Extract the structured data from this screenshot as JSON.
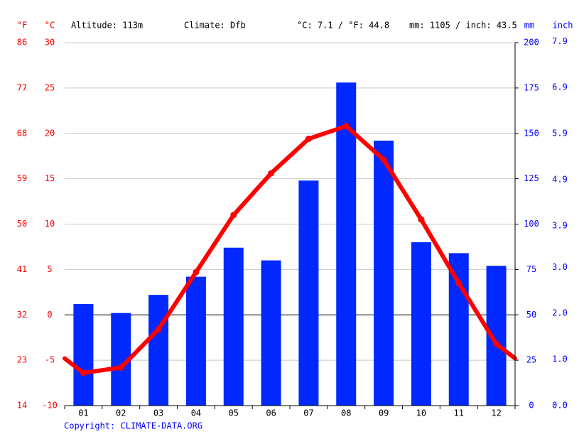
{
  "chart_data": {
    "type": "climate",
    "header": {
      "f_unit": "°F",
      "c_unit": "°C",
      "altitude": "Altitude: 113m",
      "climate": "Climate: Dfb",
      "temp_avg": "°C: 7.1 / °F: 44.8",
      "precip_total": "mm: 1105 / inch: 43.5",
      "mm_unit": "mm",
      "inch_unit": "inch"
    },
    "categories": [
      "01",
      "02",
      "03",
      "04",
      "05",
      "06",
      "07",
      "08",
      "09",
      "10",
      "11",
      "12"
    ],
    "series": [
      {
        "type": "bar",
        "axis": "y2",
        "color": "#0028ff",
        "values": [
          56,
          51,
          61,
          71,
          87,
          80,
          124,
          178,
          146,
          90,
          84,
          77
        ]
      },
      {
        "type": "line",
        "axis": "y",
        "color": "#ff0000",
        "values": [
          -6.4,
          -5.8,
          -1.6,
          4.7,
          11.0,
          15.6,
          19.4,
          20.8,
          17.1,
          10.5,
          3.5,
          -3.2
        ]
      }
    ],
    "ylim": [
      -10,
      30
    ],
    "yticks": [
      -10,
      -5,
      0,
      5,
      10,
      15,
      20,
      25,
      30
    ],
    "y_fahrenheit": {
      "ylim": [
        14,
        86
      ],
      "yticks": [
        14,
        23,
        32,
        41,
        50,
        59,
        68,
        77,
        86
      ]
    },
    "y2lim": [
      0,
      200
    ],
    "y2ticks": [
      0,
      25,
      50,
      75,
      100,
      125,
      150,
      175,
      200
    ],
    "y2_inch": {
      "ylim": [
        0,
        7.874
      ],
      "yticks": [
        {
          "value": 0,
          "label": "0.0"
        },
        {
          "value": 1,
          "label": "1.0"
        },
        {
          "value": 2,
          "label": "2.0"
        },
        {
          "value": 3,
          "label": "3.0"
        },
        3.9,
        4.9,
        5.9,
        6.9,
        7.9
      ]
    },
    "grid": true,
    "footer": "Copyright: CLIMATE-DATA.ORG"
  }
}
